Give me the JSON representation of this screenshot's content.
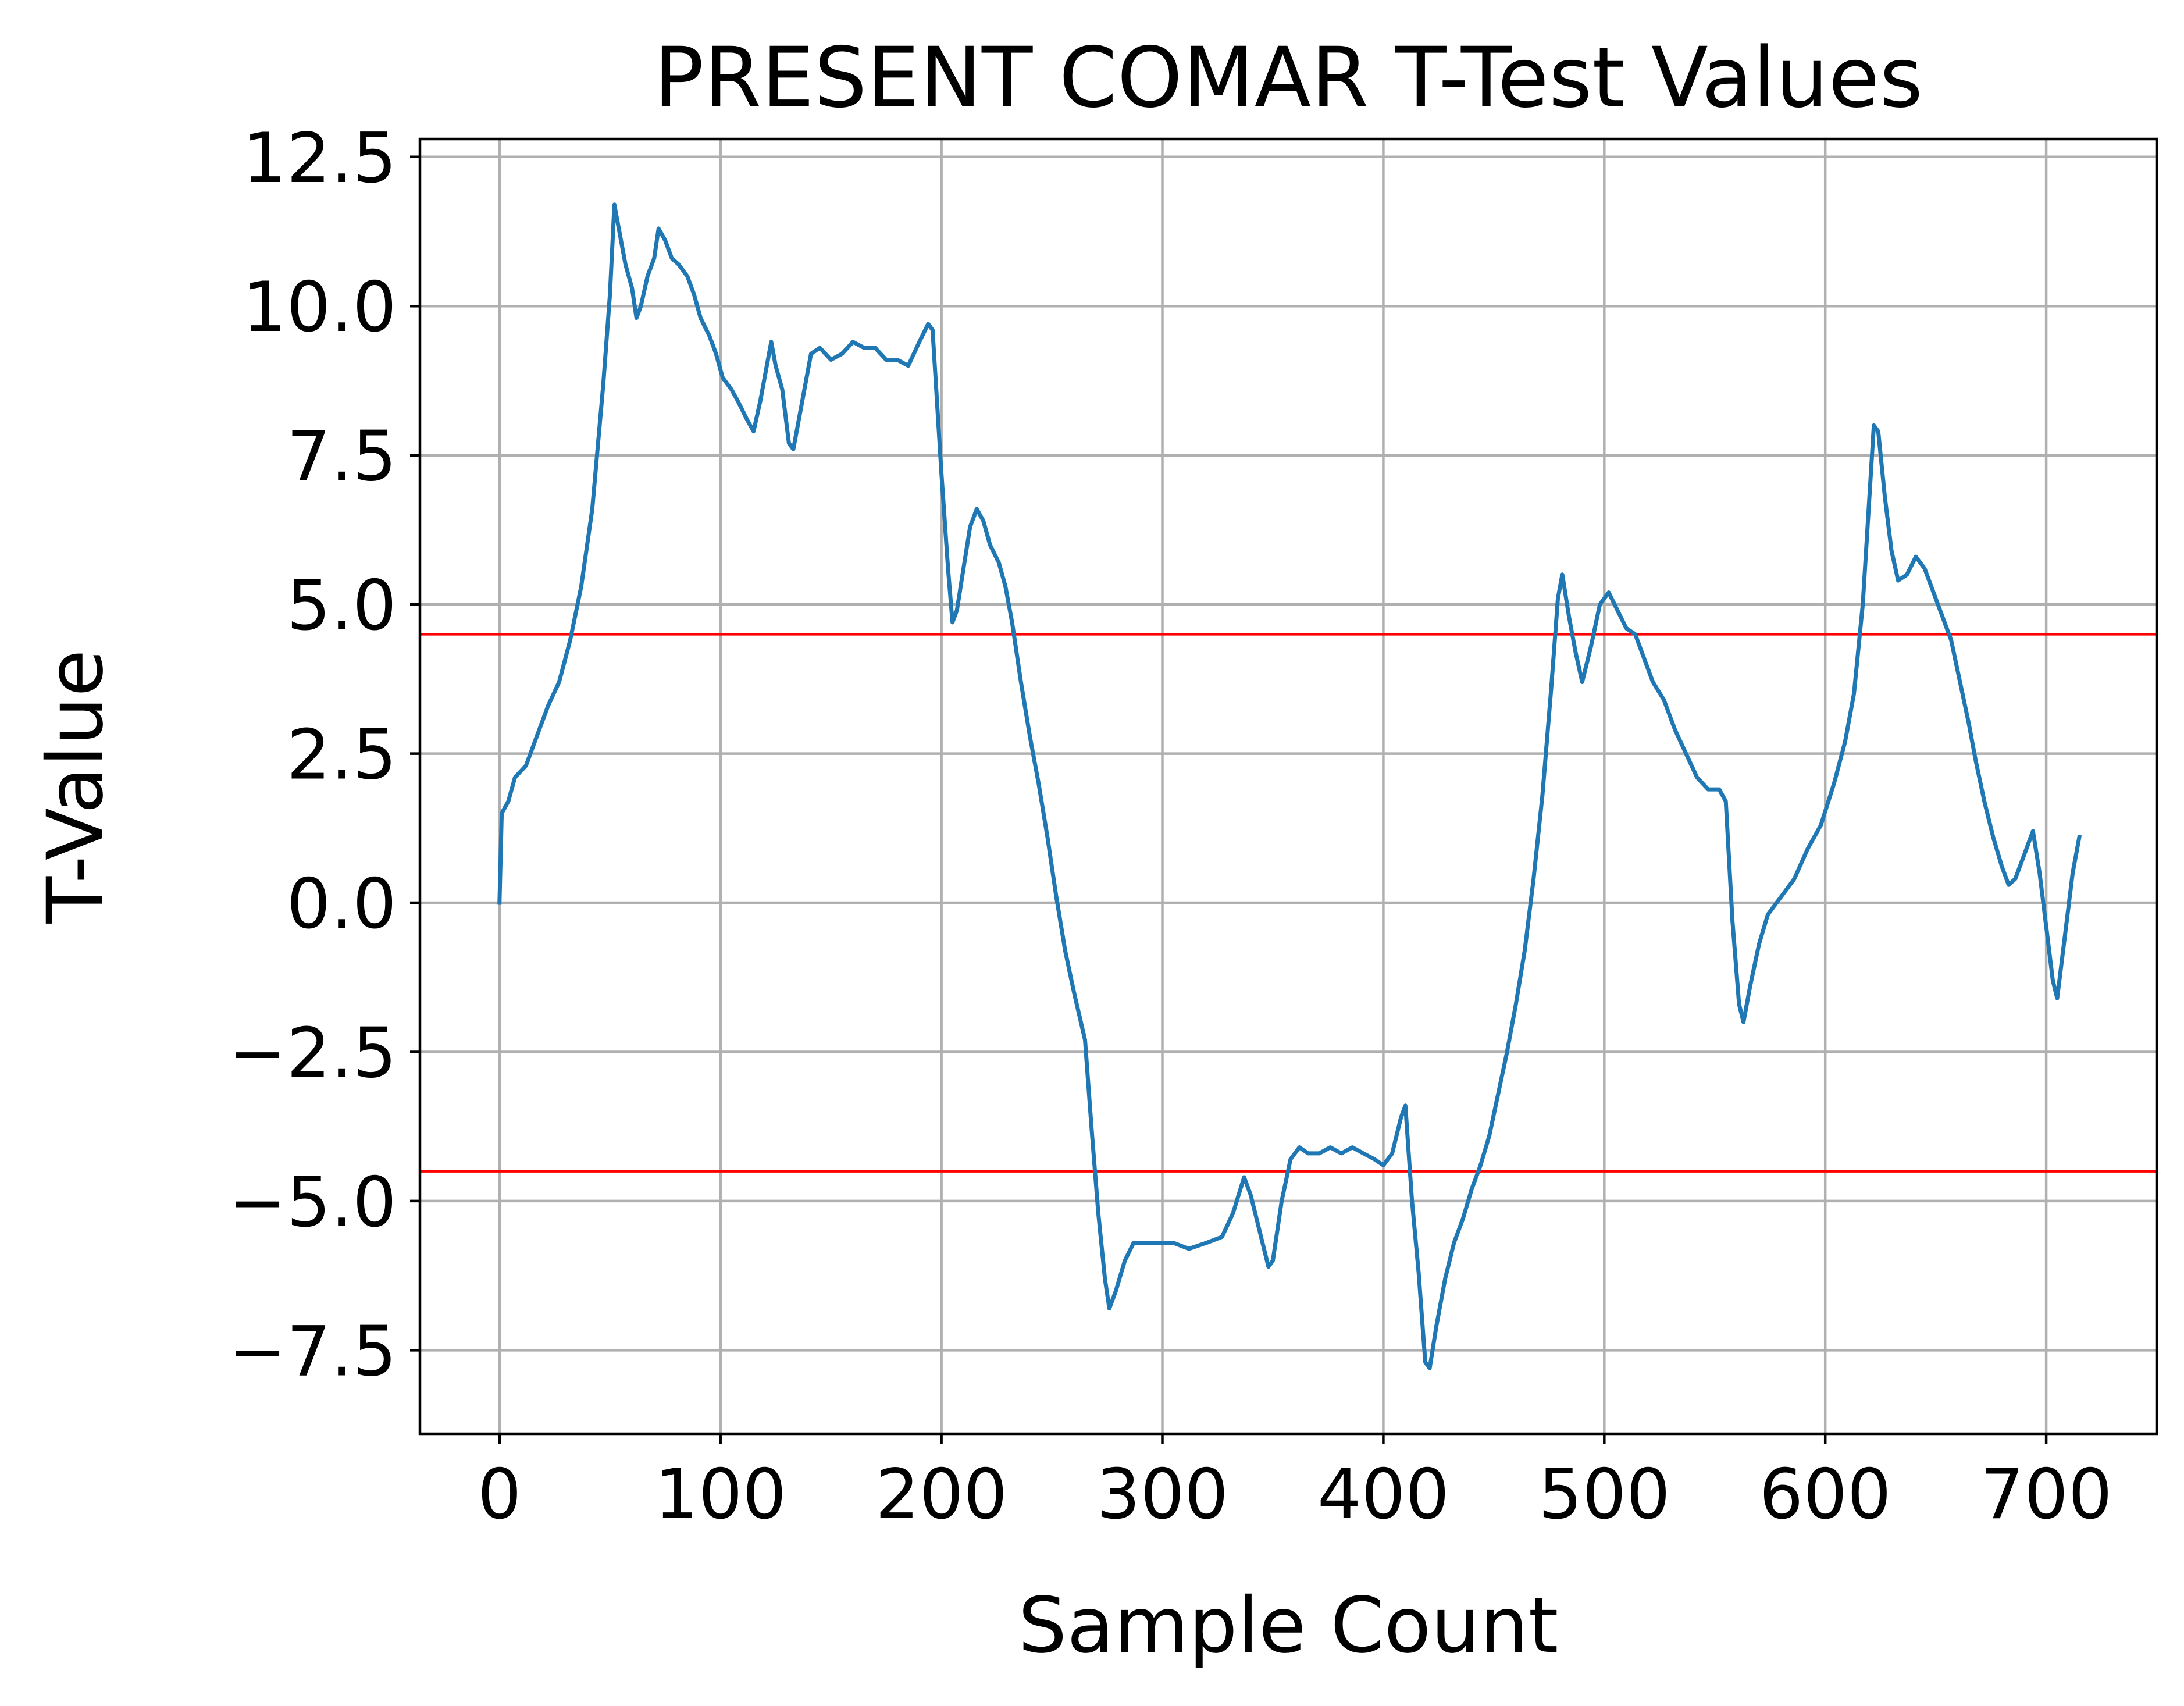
{
  "chart_data": {
    "type": "line",
    "title": "PRESENT COMAR T-Test Values",
    "xlabel": "Sample Count",
    "ylabel": "T-Value",
    "xlim": [
      -36,
      750
    ],
    "ylim": [
      -8.9,
      12.8
    ],
    "xticks": [
      0,
      100,
      200,
      300,
      400,
      500,
      600,
      700
    ],
    "xtick_labels": [
      "0",
      "100",
      "200",
      "300",
      "400",
      "500",
      "600",
      "700"
    ],
    "yticks": [
      -7.5,
      -5.0,
      -2.5,
      0.0,
      2.5,
      5.0,
      7.5,
      10.0,
      12.5
    ],
    "ytick_labels": [
      "−7.5",
      "−5.0",
      "−2.5",
      "0.0",
      "2.5",
      "5.0",
      "7.5",
      "10.0",
      "12.5"
    ],
    "grid": true,
    "series": [
      {
        "color": "#1f77b4",
        "points": [
          [
            0,
            0.0
          ],
          [
            1,
            1.5
          ],
          [
            4,
            1.7
          ],
          [
            7,
            2.1
          ],
          [
            12,
            2.3
          ],
          [
            17,
            2.8
          ],
          [
            22,
            3.3
          ],
          [
            27,
            3.7
          ],
          [
            32,
            4.4
          ],
          [
            37,
            5.3
          ],
          [
            42,
            6.6
          ],
          [
            47,
            8.7
          ],
          [
            50,
            10.2
          ],
          [
            52,
            11.7
          ],
          [
            54,
            11.3
          ],
          [
            57,
            10.7
          ],
          [
            60,
            10.3
          ],
          [
            62,
            9.8
          ],
          [
            64,
            10.0
          ],
          [
            67,
            10.5
          ],
          [
            70,
            10.8
          ],
          [
            72,
            11.3
          ],
          [
            75,
            11.1
          ],
          [
            78,
            10.8
          ],
          [
            81,
            10.7
          ],
          [
            85,
            10.5
          ],
          [
            88,
            10.2
          ],
          [
            91,
            9.8
          ],
          [
            95,
            9.5
          ],
          [
            98,
            9.2
          ],
          [
            101,
            8.8
          ],
          [
            105,
            8.6
          ],
          [
            108,
            8.4
          ],
          [
            112,
            8.1
          ],
          [
            115,
            7.9
          ],
          [
            118,
            8.4
          ],
          [
            121,
            9.0
          ],
          [
            123,
            9.4
          ],
          [
            125,
            9.0
          ],
          [
            128,
            8.6
          ],
          [
            131,
            7.7
          ],
          [
            133,
            7.6
          ],
          [
            135,
            8.0
          ],
          [
            138,
            8.6
          ],
          [
            141,
            9.2
          ],
          [
            145,
            9.3
          ],
          [
            150,
            9.1
          ],
          [
            155,
            9.2
          ],
          [
            160,
            9.4
          ],
          [
            165,
            9.3
          ],
          [
            170,
            9.3
          ],
          [
            175,
            9.1
          ],
          [
            180,
            9.1
          ],
          [
            185,
            9.0
          ],
          [
            190,
            9.4
          ],
          [
            194,
            9.7
          ],
          [
            196,
            9.6
          ],
          [
            200,
            7.2
          ],
          [
            203,
            5.6
          ],
          [
            205,
            4.7
          ],
          [
            207,
            4.9
          ],
          [
            210,
            5.6
          ],
          [
            213,
            6.3
          ],
          [
            216,
            6.6
          ],
          [
            219,
            6.4
          ],
          [
            222,
            6.0
          ],
          [
            226,
            5.7
          ],
          [
            229,
            5.3
          ],
          [
            232,
            4.7
          ],
          [
            236,
            3.7
          ],
          [
            240,
            2.8
          ],
          [
            244,
            2.0
          ],
          [
            248,
            1.1
          ],
          [
            252,
            0.1
          ],
          [
            256,
            -0.8
          ],
          [
            260,
            -1.5
          ],
          [
            265,
            -2.3
          ],
          [
            268,
            -3.8
          ],
          [
            271,
            -5.2
          ],
          [
            274,
            -6.3
          ],
          [
            276,
            -6.8
          ],
          [
            279,
            -6.5
          ],
          [
            283,
            -6.0
          ],
          [
            287,
            -5.7
          ],
          [
            292,
            -5.7
          ],
          [
            298,
            -5.7
          ],
          [
            305,
            -5.7
          ],
          [
            312,
            -5.8
          ],
          [
            320,
            -5.7
          ],
          [
            327,
            -5.6
          ],
          [
            332,
            -5.2
          ],
          [
            337,
            -4.6
          ],
          [
            340,
            -4.9
          ],
          [
            344,
            -5.5
          ],
          [
            348,
            -6.1
          ],
          [
            350,
            -6.0
          ],
          [
            354,
            -5.0
          ],
          [
            358,
            -4.3
          ],
          [
            362,
            -4.1
          ],
          [
            366,
            -4.2
          ],
          [
            371,
            -4.2
          ],
          [
            376,
            -4.1
          ],
          [
            381,
            -4.2
          ],
          [
            386,
            -4.1
          ],
          [
            391,
            -4.2
          ],
          [
            396,
            -4.3
          ],
          [
            400,
            -4.4
          ],
          [
            404,
            -4.2
          ],
          [
            408,
            -3.6
          ],
          [
            410,
            -3.4
          ],
          [
            413,
            -5.0
          ],
          [
            416,
            -6.2
          ],
          [
            419,
            -7.7
          ],
          [
            421,
            -7.8
          ],
          [
            424,
            -7.1
          ],
          [
            428,
            -6.3
          ],
          [
            432,
            -5.7
          ],
          [
            436,
            -5.3
          ],
          [
            440,
            -4.8
          ],
          [
            444,
            -4.4
          ],
          [
            448,
            -3.9
          ],
          [
            452,
            -3.2
          ],
          [
            456,
            -2.5
          ],
          [
            460,
            -1.7
          ],
          [
            464,
            -0.8
          ],
          [
            468,
            0.4
          ],
          [
            472,
            1.8
          ],
          [
            476,
            3.6
          ],
          [
            479,
            5.1
          ],
          [
            481,
            5.5
          ],
          [
            484,
            4.8
          ],
          [
            487,
            4.2
          ],
          [
            490,
            3.7
          ],
          [
            494,
            4.3
          ],
          [
            498,
            5.0
          ],
          [
            502,
            5.2
          ],
          [
            506,
            4.9
          ],
          [
            510,
            4.6
          ],
          [
            514,
            4.5
          ],
          [
            518,
            4.1
          ],
          [
            522,
            3.7
          ],
          [
            527,
            3.4
          ],
          [
            532,
            2.9
          ],
          [
            537,
            2.5
          ],
          [
            542,
            2.1
          ],
          [
            547,
            1.9
          ],
          [
            552,
            1.9
          ],
          [
            555,
            1.7
          ],
          [
            558,
            -0.3
          ],
          [
            561,
            -1.7
          ],
          [
            563,
            -2.0
          ],
          [
            566,
            -1.4
          ],
          [
            570,
            -0.7
          ],
          [
            574,
            -0.2
          ],
          [
            580,
            0.1
          ],
          [
            586,
            0.4
          ],
          [
            592,
            0.9
          ],
          [
            598,
            1.3
          ],
          [
            604,
            2.0
          ],
          [
            609,
            2.7
          ],
          [
            613,
            3.5
          ],
          [
            617,
            5.0
          ],
          [
            620,
            6.8
          ],
          [
            622,
            8.0
          ],
          [
            624,
            7.9
          ],
          [
            627,
            6.8
          ],
          [
            630,
            5.9
          ],
          [
            633,
            5.4
          ],
          [
            637,
            5.5
          ],
          [
            641,
            5.8
          ],
          [
            645,
            5.6
          ],
          [
            649,
            5.2
          ],
          [
            653,
            4.8
          ],
          [
            657,
            4.4
          ],
          [
            661,
            3.7
          ],
          [
            665,
            3.0
          ],
          [
            668,
            2.4
          ],
          [
            672,
            1.7
          ],
          [
            676,
            1.1
          ],
          [
            680,
            0.6
          ],
          [
            683,
            0.3
          ],
          [
            686,
            0.4
          ],
          [
            690,
            0.8
          ],
          [
            694,
            1.2
          ],
          [
            697,
            0.5
          ],
          [
            700,
            -0.4
          ],
          [
            703,
            -1.3
          ],
          [
            705,
            -1.6
          ],
          [
            708,
            -0.7
          ],
          [
            712,
            0.5
          ],
          [
            715,
            1.1
          ]
        ]
      }
    ],
    "hlines": [
      {
        "y": 4.5,
        "color": "#ff0000"
      },
      {
        "y": -4.5,
        "color": "#ff0000"
      }
    ]
  }
}
